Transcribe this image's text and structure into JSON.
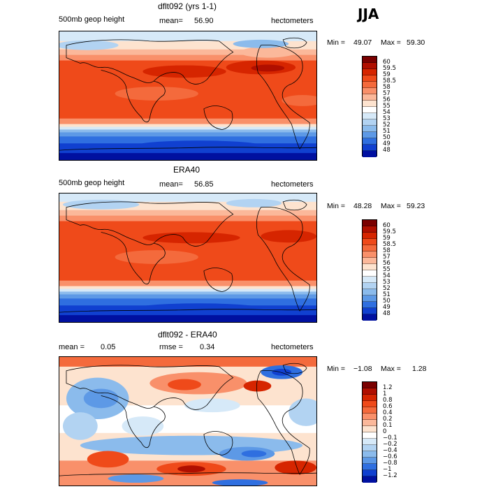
{
  "season": "JJA",
  "panels": [
    {
      "title": "dflt092 (yrs 1-1)",
      "left_label": "500mb geop height",
      "mean_label": "mean=",
      "mean_value": "56.90",
      "units": "hectometers",
      "min_label": "Min =",
      "min_value": "49.07",
      "max_label": "Max =",
      "max_value": "59.30",
      "colorbar": {
        "labels": [
          "60",
          "59.5",
          "59",
          "58.5",
          "58",
          "57",
          "56",
          "55",
          "54",
          "53",
          "52",
          "51",
          "50",
          "49",
          "48"
        ],
        "colors": [
          "#7a0000",
          "#b00f00",
          "#d62500",
          "#ef4a1a",
          "#f46a3c",
          "#f9906a",
          "#fbb89a",
          "#fde3cf",
          "#ffffff",
          "#d6e9f8",
          "#b2d3f2",
          "#8bbbec",
          "#5d99e6",
          "#2f6fe0",
          "#1040d0",
          "#0010a0"
        ]
      },
      "map_kind": "height"
    },
    {
      "title": "ERA40",
      "left_label": "500mb geop height",
      "mean_label": "mean=",
      "mean_value": "56.85",
      "units": "hectometers",
      "min_label": "Min =",
      "min_value": "48.28",
      "max_label": "Max =",
      "max_value": "59.23",
      "colorbar": {
        "labels": [
          "60",
          "59.5",
          "59",
          "58.5",
          "58",
          "57",
          "56",
          "55",
          "54",
          "53",
          "52",
          "51",
          "50",
          "49",
          "48"
        ],
        "colors": [
          "#7a0000",
          "#b00f00",
          "#d62500",
          "#ef4a1a",
          "#f46a3c",
          "#f9906a",
          "#fbb89a",
          "#fde3cf",
          "#ffffff",
          "#d6e9f8",
          "#b2d3f2",
          "#8bbbec",
          "#5d99e6",
          "#2f6fe0",
          "#1040d0",
          "#0010a0"
        ]
      },
      "map_kind": "height"
    },
    {
      "title": "dflt092 - ERA40",
      "left_label": "mean =",
      "left_value": "0.05",
      "mean_label": "rmse =",
      "mean_value": "0.34",
      "units": "hectometers",
      "min_label": "Min =",
      "min_value": "−1.08",
      "max_label": "Max =",
      "max_value": "1.28",
      "colorbar": {
        "labels": [
          "1.2",
          "1",
          "0.8",
          "0.6",
          "0.4",
          "0.2",
          "0.1",
          "0",
          "−0.1",
          "−0.2",
          "−0.4",
          "−0.6",
          "−0.8",
          "−1",
          "−1.2"
        ],
        "colors": [
          "#7a0000",
          "#b00f00",
          "#d62500",
          "#ef4a1a",
          "#f46a3c",
          "#f9906a",
          "#fbb89a",
          "#fde3cf",
          "#ffffff",
          "#d6e9f8",
          "#b2d3f2",
          "#8bbbec",
          "#5d99e6",
          "#2f6fe0",
          "#1040d0",
          "#0010a0"
        ]
      },
      "map_kind": "diff"
    }
  ]
}
